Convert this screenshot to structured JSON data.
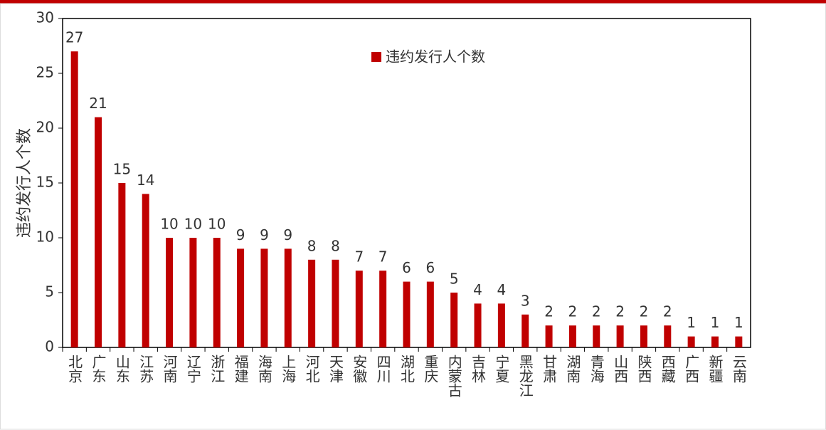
{
  "chart_data": {
    "type": "bar",
    "categories": [
      "北京",
      "广东",
      "山东",
      "江苏",
      "河南",
      "辽宁",
      "浙江",
      "福建",
      "海南",
      "上海",
      "河北",
      "天津",
      "安徽",
      "四川",
      "湖北",
      "重庆",
      "内蒙古",
      "吉林",
      "宁夏",
      "黑龙江",
      "甘肃",
      "湖南",
      "青海",
      "山西",
      "陕西",
      "西藏",
      "广西",
      "新疆",
      "云南"
    ],
    "series": [
      {
        "name": "违约发行人个数",
        "color": "#c00000",
        "values": [
          27,
          21,
          15,
          14,
          10,
          10,
          10,
          9,
          9,
          9,
          8,
          8,
          7,
          7,
          6,
          6,
          5,
          4,
          4,
          3,
          2,
          2,
          2,
          2,
          2,
          2,
          1,
          1,
          1
        ]
      }
    ],
    "y_label": "违约发行人个数",
    "ylim": [
      0,
      30
    ],
    "yticks": [
      0,
      5,
      10,
      15,
      20,
      25,
      30
    ],
    "legend": "top"
  }
}
